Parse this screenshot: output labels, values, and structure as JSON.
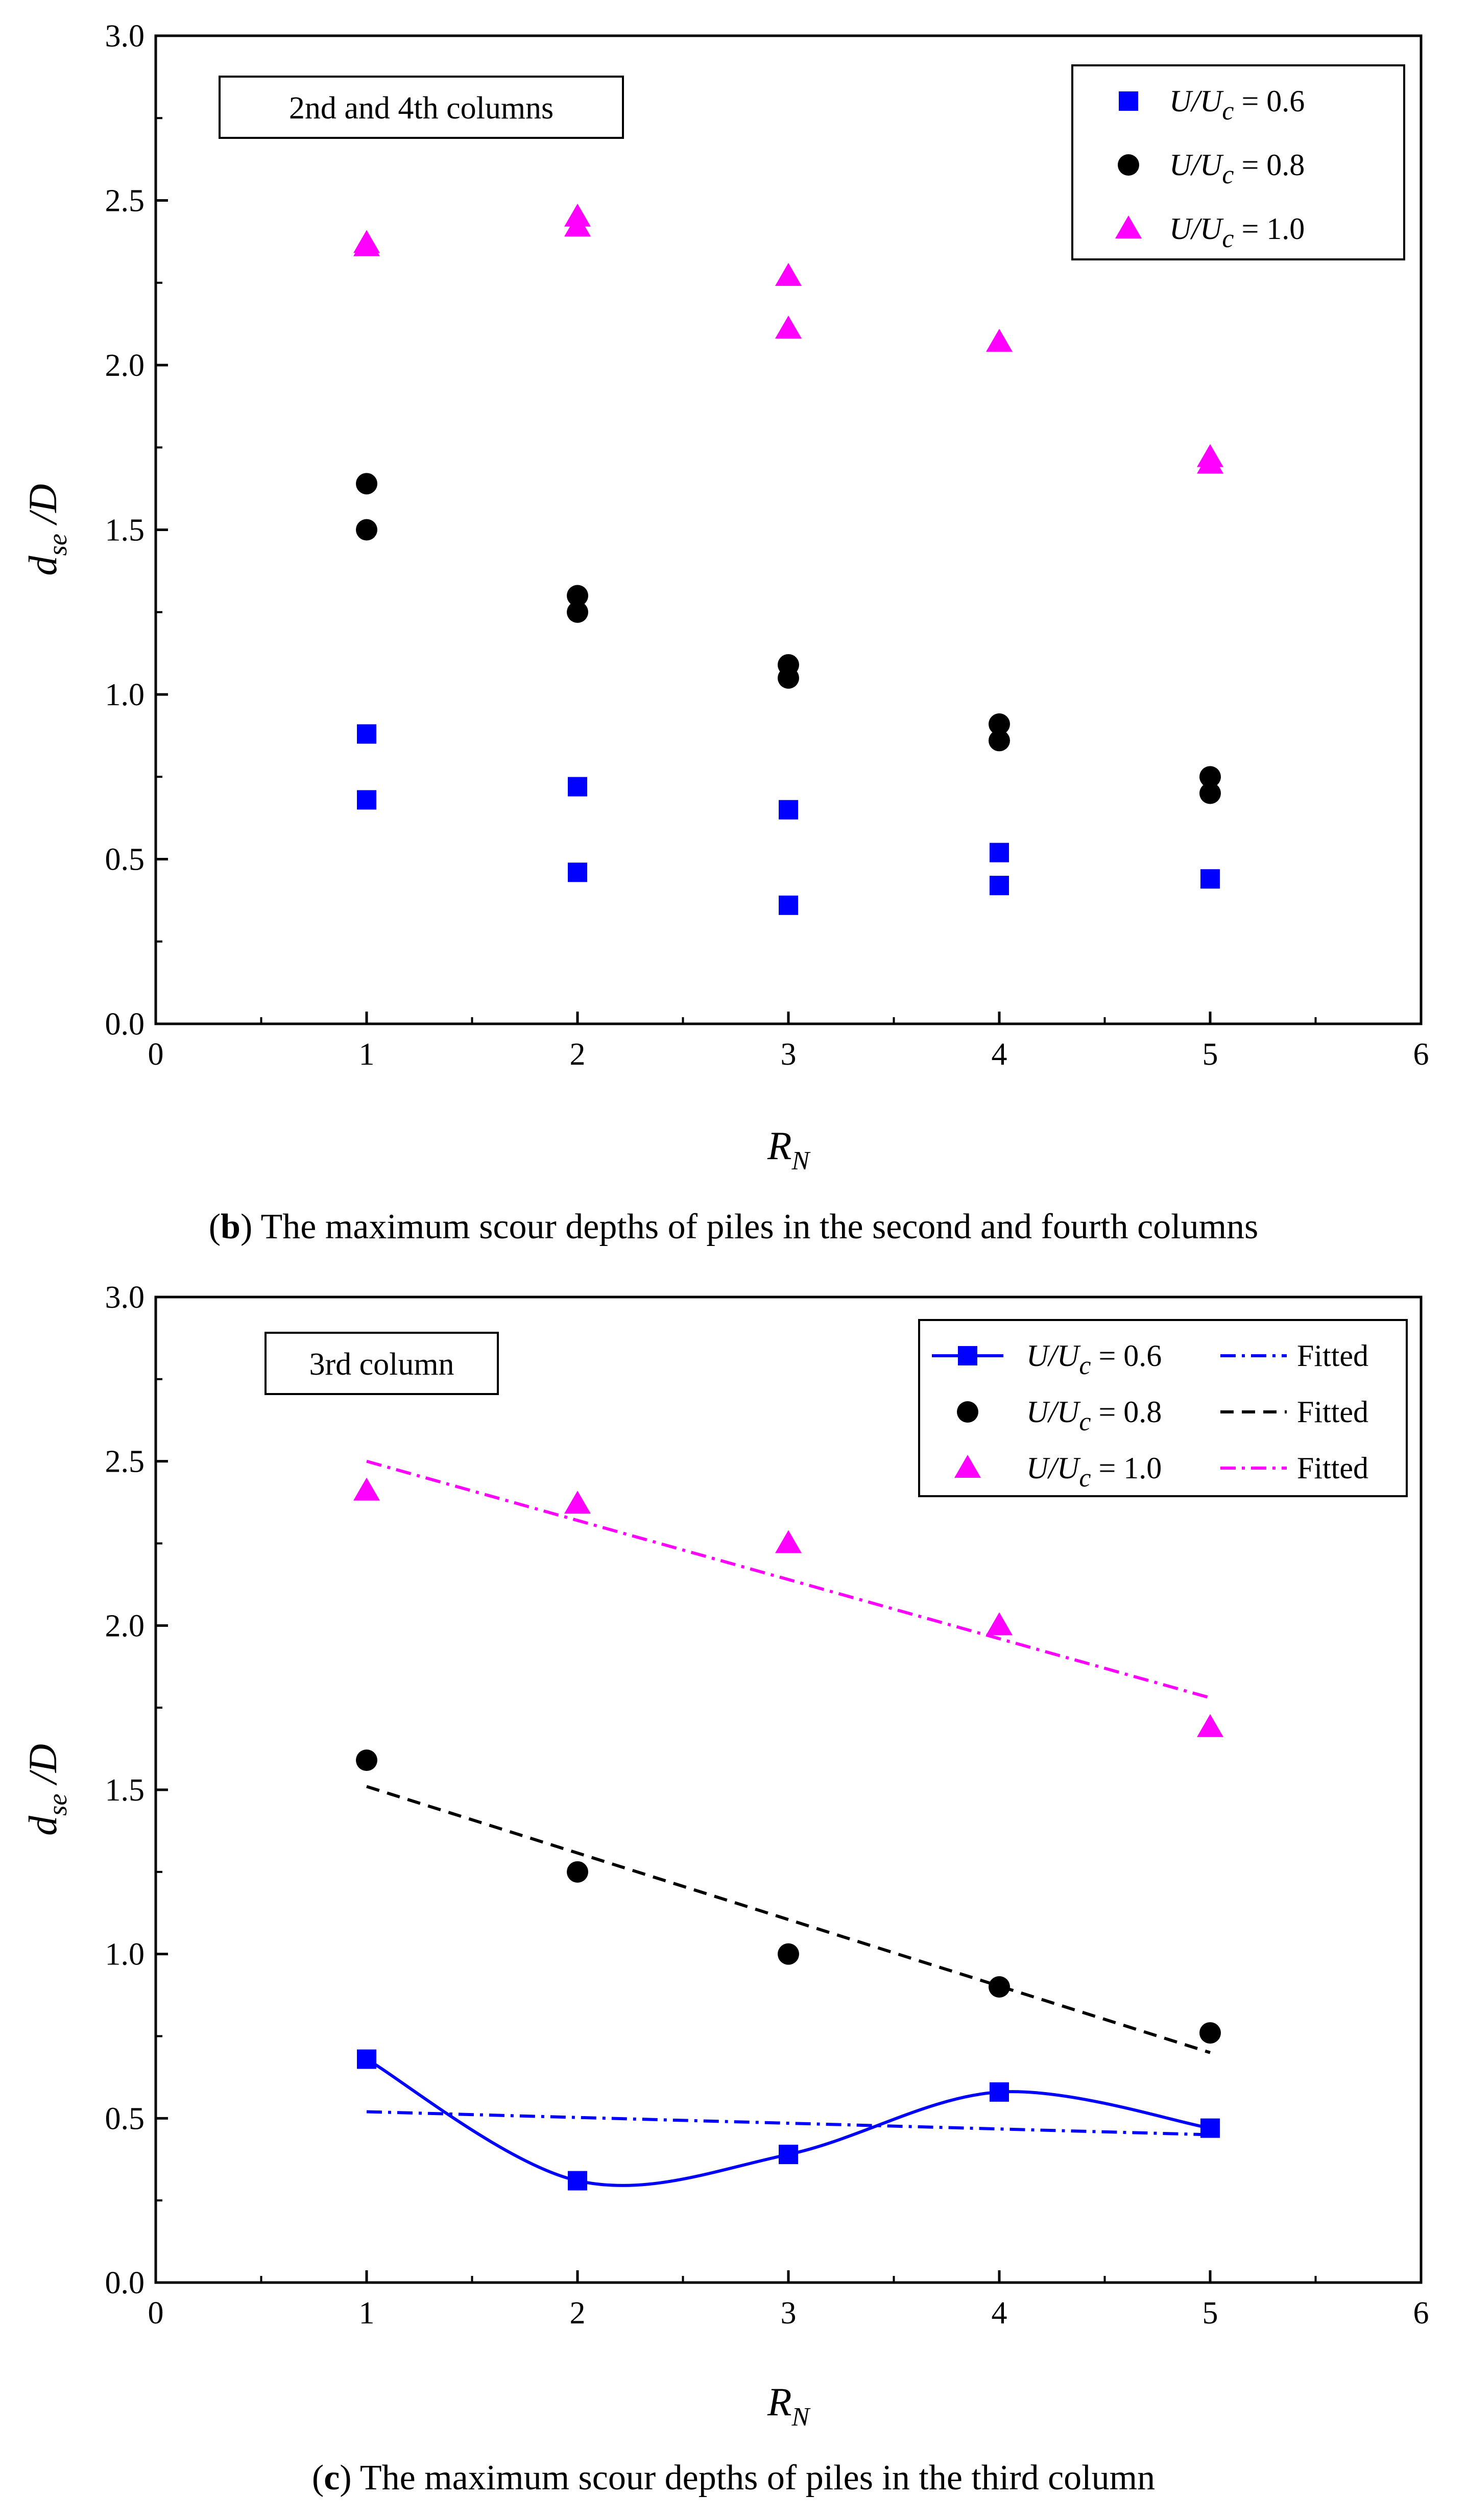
{
  "chart_data": [
    {
      "type": "scatter",
      "panel": "b",
      "caption_letter": "b",
      "caption_text": "The maximum scour depths of piles in the second and fourth columns",
      "tag": "2nd and 4th columns",
      "xlabel": "R",
      "xlabel_sub": "N",
      "ylabel": "d",
      "ylabel_sub": "se",
      "ylabel_tail": "/D",
      "xlim": [
        0,
        6
      ],
      "ylim": [
        0,
        3.0
      ],
      "xticks": [
        "0",
        "1",
        "2",
        "3",
        "4",
        "5",
        "6"
      ],
      "yticks": [
        "0.0",
        "0.5",
        "1.0",
        "1.5",
        "2.0",
        "2.5",
        "3.0"
      ],
      "legend_position": "top-right",
      "series": [
        {
          "name": "U/Uc = 0.6",
          "label_main": "U/U",
          "label_sub": "c",
          "label_tail": " = 0.6",
          "marker": "square",
          "color": "#0000ff",
          "points": [
            [
              1,
              0.88
            ],
            [
              1,
              0.68
            ],
            [
              2,
              0.72
            ],
            [
              2,
              0.46
            ],
            [
              3,
              0.65
            ],
            [
              3,
              0.36
            ],
            [
              4,
              0.52
            ],
            [
              4,
              0.42
            ],
            [
              5,
              0.44
            ]
          ]
        },
        {
          "name": "U/Uc = 0.8",
          "label_main": "U/U",
          "label_sub": "c",
          "label_tail": " = 0.8",
          "marker": "circle",
          "color": "#000000",
          "points": [
            [
              1,
              1.64
            ],
            [
              1,
              1.5
            ],
            [
              2,
              1.3
            ],
            [
              2,
              1.25
            ],
            [
              3,
              1.09
            ],
            [
              3,
              1.05
            ],
            [
              4,
              0.91
            ],
            [
              4,
              0.86
            ],
            [
              5,
              0.75
            ],
            [
              5,
              0.7
            ]
          ]
        },
        {
          "name": "U/Uc = 1.0",
          "label_main": "U/U",
          "label_sub": "c",
          "label_tail": " = 1.0",
          "marker": "triangle",
          "color": "#ff00ff",
          "points": [
            [
              1,
              2.37
            ],
            [
              1,
              2.36
            ],
            [
              2,
              2.45
            ],
            [
              2,
              2.42
            ],
            [
              3,
              2.27
            ],
            [
              3,
              2.11
            ],
            [
              4,
              2.07
            ],
            [
              5,
              1.72
            ],
            [
              5,
              1.7
            ]
          ]
        }
      ]
    },
    {
      "type": "scatter",
      "panel": "c",
      "caption_letter": "c",
      "caption_text": "The maximum scour depths of piles in the third column",
      "tag": "3rd column",
      "xlabel": "R",
      "xlabel_sub": "N",
      "ylabel": "d",
      "ylabel_sub": "se",
      "ylabel_tail": "/D",
      "xlim": [
        0,
        6
      ],
      "ylim": [
        0,
        3.0
      ],
      "xticks": [
        "0",
        "1",
        "2",
        "3",
        "4",
        "5",
        "6"
      ],
      "yticks": [
        "0.0",
        "0.5",
        "1.0",
        "1.5",
        "2.0",
        "2.5",
        "3.0"
      ],
      "legend_position": "top-right",
      "fitted_label": "Fitted",
      "series": [
        {
          "name": "U/Uc = 0.6",
          "label_main": "U/U",
          "label_sub": "c",
          "label_tail": " = 0.6",
          "marker": "square",
          "color": "#0000ff",
          "points": [
            [
              1,
              0.68
            ],
            [
              2,
              0.31
            ],
            [
              3,
              0.39
            ],
            [
              4,
              0.58
            ],
            [
              5,
              0.47
            ]
          ],
          "connect": "smooth",
          "fit": [
            [
              1,
              0.52
            ],
            [
              5,
              0.45
            ]
          ],
          "fit_style": "dash-dot"
        },
        {
          "name": "U/Uc = 0.8",
          "label_main": "U/U",
          "label_sub": "c",
          "label_tail": " = 0.8",
          "marker": "circle",
          "color": "#000000",
          "points": [
            [
              1,
              1.59
            ],
            [
              2,
              1.25
            ],
            [
              3,
              1.0
            ],
            [
              4,
              0.9
            ],
            [
              5,
              0.76
            ]
          ],
          "fit": [
            [
              1,
              1.51
            ],
            [
              5,
              0.7
            ]
          ],
          "fit_style": "dash"
        },
        {
          "name": "U/Uc = 1.0",
          "label_main": "U/U",
          "label_sub": "c",
          "label_tail": " = 1.0",
          "marker": "triangle",
          "color": "#ff00ff",
          "points": [
            [
              1,
              2.41
            ],
            [
              2,
              2.37
            ],
            [
              3,
              2.25
            ],
            [
              4,
              2.0
            ],
            [
              5,
              1.69
            ]
          ],
          "fit": [
            [
              1,
              2.5
            ],
            [
              5,
              1.78
            ]
          ],
          "fit_style": "dash-dot"
        }
      ]
    }
  ]
}
